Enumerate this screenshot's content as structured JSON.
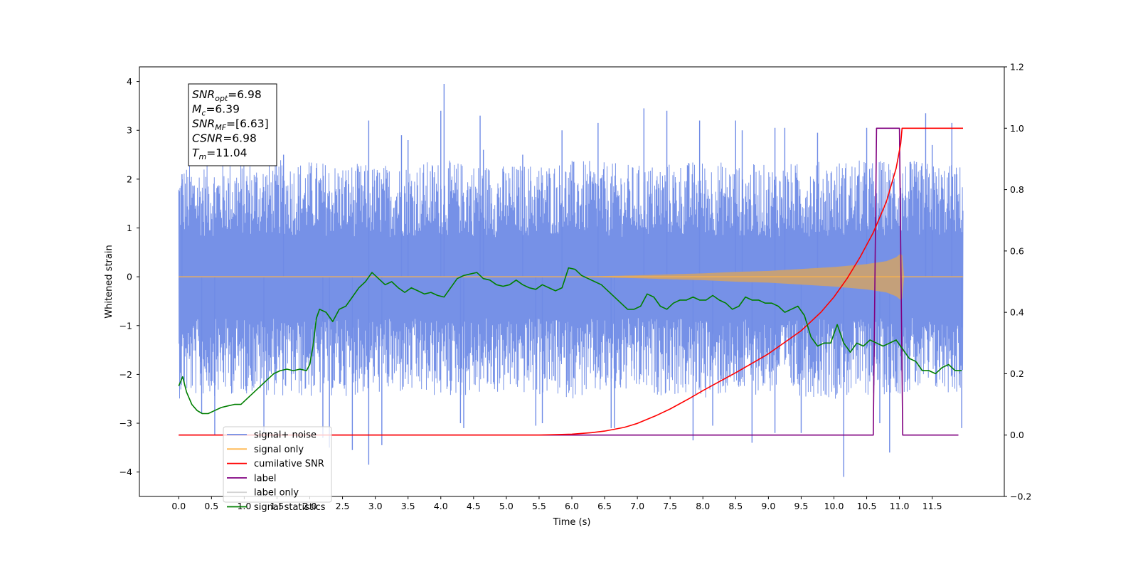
{
  "chart_data": {
    "type": "line",
    "title": "",
    "xlabel": "Time (s)",
    "ylabel": "Whitened strain",
    "xlim": [
      -0.6,
      12.6
    ],
    "ylim": [
      -4.5,
      4.3
    ],
    "y2lim": [
      -0.2,
      1.2
    ],
    "x_ticks": [
      0.0,
      0.5,
      1.0,
      1.5,
      2.0,
      2.5,
      3.0,
      3.5,
      4.0,
      4.5,
      5.0,
      5.5,
      6.0,
      6.5,
      7.0,
      7.5,
      8.0,
      8.5,
      9.0,
      9.5,
      10.0,
      10.5,
      11.0,
      11.5
    ],
    "x_tick_labels": [
      "0.0",
      "0.5",
      "1.0",
      "1.5",
      "2.0",
      "2.5",
      "3.0",
      "3.5",
      "4.0",
      "4.5",
      "5.0",
      "5.5",
      "6.0",
      "6.5",
      "7.0",
      "7.5",
      "8.0",
      "8.5",
      "9.0",
      "9.5",
      "10.0",
      "10.5",
      "11.0",
      "11.5"
    ],
    "y_ticks": [
      4,
      3,
      2,
      1,
      0,
      -1,
      -2,
      -3,
      -4
    ],
    "y_tick_labels": [
      "4",
      "3",
      "2",
      "1",
      "0",
      "−1",
      "−2",
      "−3",
      "−4"
    ],
    "y2_ticks": [
      1.2,
      1.0,
      0.8,
      0.6,
      0.4,
      0.2,
      0.0,
      -0.2
    ],
    "y2_tick_labels": [
      "1.2",
      "1.0",
      "0.8",
      "0.6",
      "0.4",
      "0.2",
      "0.0",
      "−0.2"
    ],
    "legend_position": "lower-left",
    "colors": {
      "signal_plus_noise": "#6f8be6",
      "signal_only": "#ffb347",
      "signal_overlay": "#c4a07a",
      "cumulative_snr": "#ff0000",
      "label": "#800080",
      "label_only": "#d3d3d3",
      "signal_statistics": "#007f00"
    },
    "series": [
      {
        "name": "signal+ noise",
        "axis": "left",
        "style": "noise",
        "x_range": [
          0.0,
          11.97
        ],
        "band_envelope": {
          "x": [
            0.0,
            1.0,
            2.0,
            3.0,
            4.0,
            5.0,
            6.0,
            7.0,
            8.0,
            9.0,
            10.0,
            11.0,
            11.97
          ],
          "upper": [
            2.3,
            2.4,
            2.4,
            2.3,
            2.4,
            2.3,
            2.4,
            2.3,
            2.4,
            2.3,
            2.4,
            2.4,
            2.3
          ],
          "lower": [
            -2.5,
            -2.4,
            -2.5,
            -2.4,
            -2.5,
            -2.4,
            -2.5,
            -2.4,
            -2.5,
            -2.4,
            -2.5,
            -2.4,
            -2.4
          ]
        },
        "spikes": [
          [
            0.05,
            2.1
          ],
          [
            0.35,
            -2.8
          ],
          [
            0.55,
            -3.25
          ],
          [
            1.3,
            -3.2
          ],
          [
            1.6,
            2.5
          ],
          [
            2.2,
            -3.3
          ],
          [
            2.3,
            -3.5
          ],
          [
            2.65,
            -3.55
          ],
          [
            2.9,
            3.2
          ],
          [
            2.9,
            -3.85
          ],
          [
            3.1,
            -3.45
          ],
          [
            3.4,
            2.9
          ],
          [
            3.5,
            2.8
          ],
          [
            4.0,
            3.4
          ],
          [
            4.05,
            3.95
          ],
          [
            4.3,
            -3.0
          ],
          [
            4.35,
            -3.1
          ],
          [
            4.6,
            3.3
          ],
          [
            4.65,
            2.6
          ],
          [
            5.25,
            2.5
          ],
          [
            5.45,
            -3.05
          ],
          [
            5.55,
            -3.0
          ],
          [
            5.85,
            3.0
          ],
          [
            6.4,
            3.15
          ],
          [
            6.6,
            -3.1
          ],
          [
            6.65,
            -3.1
          ],
          [
            7.1,
            3.45
          ],
          [
            7.45,
            3.4
          ],
          [
            7.85,
            -3.35
          ],
          [
            7.95,
            3.2
          ],
          [
            8.15,
            -3.05
          ],
          [
            8.5,
            3.2
          ],
          [
            8.6,
            3.0
          ],
          [
            8.75,
            -3.4
          ],
          [
            9.1,
            3.05
          ],
          [
            9.1,
            -3.2
          ],
          [
            9.25,
            3.05
          ],
          [
            9.5,
            -3.2
          ],
          [
            9.75,
            2.95
          ],
          [
            10.15,
            -4.1
          ],
          [
            10.5,
            3.05
          ],
          [
            10.7,
            -3.0
          ],
          [
            10.85,
            -3.6
          ],
          [
            11.4,
            3.35
          ],
          [
            11.5,
            2.7
          ],
          [
            11.8,
            3.15
          ],
          [
            11.95,
            -3.1
          ]
        ]
      },
      {
        "name": "signal only",
        "axis": "left",
        "style": "chirp",
        "amplitude_envelope": {
          "x": [
            0.0,
            6.0,
            7.0,
            7.5,
            8.0,
            8.5,
            9.0,
            9.5,
            10.0,
            10.5,
            10.8,
            10.95,
            11.04,
            11.06,
            11.97
          ],
          "y": [
            0.0,
            0.0,
            0.03,
            0.05,
            0.07,
            0.1,
            0.12,
            0.16,
            0.2,
            0.26,
            0.32,
            0.4,
            0.5,
            0.0,
            0.0
          ]
        }
      },
      {
        "name": "cumilative SNR",
        "axis": "right",
        "x": [
          0.0,
          1.0,
          2.0,
          3.0,
          4.0,
          5.0,
          5.5,
          6.0,
          6.3,
          6.5,
          6.8,
          7.0,
          7.3,
          7.5,
          7.8,
          8.0,
          8.3,
          8.5,
          8.8,
          9.0,
          9.3,
          9.5,
          9.8,
          10.0,
          10.2,
          10.4,
          10.6,
          10.8,
          10.95,
          11.02,
          11.04,
          11.1,
          11.5,
          11.97
        ],
        "y": [
          0.0,
          0.0,
          0.0,
          0.0,
          0.0,
          0.0,
          0.0,
          0.003,
          0.008,
          0.013,
          0.025,
          0.038,
          0.065,
          0.085,
          0.12,
          0.145,
          0.18,
          0.203,
          0.24,
          0.265,
          0.31,
          0.34,
          0.4,
          0.45,
          0.51,
          0.58,
          0.66,
          0.76,
          0.87,
          0.95,
          1.0,
          1.0,
          1.0,
          1.0
        ]
      },
      {
        "name": "label",
        "axis": "right",
        "x": [
          0.0,
          10.6,
          10.65,
          11.0,
          11.05,
          11.9
        ],
        "y": [
          0.0,
          0.0,
          1.0,
          1.0,
          0.0,
          0.0
        ]
      },
      {
        "name": "label only",
        "axis": "right",
        "x": [],
        "y": []
      },
      {
        "name": "signal statistics",
        "axis": "right",
        "x": [
          0.0,
          0.06,
          0.12,
          0.2,
          0.28,
          0.36,
          0.45,
          0.55,
          0.65,
          0.75,
          0.85,
          0.95,
          1.05,
          1.15,
          1.25,
          1.35,
          1.45,
          1.55,
          1.65,
          1.75,
          1.85,
          1.95,
          2.0,
          2.05,
          2.1,
          2.15,
          2.25,
          2.35,
          2.45,
          2.55,
          2.65,
          2.75,
          2.85,
          2.95,
          3.05,
          3.15,
          3.25,
          3.35,
          3.45,
          3.55,
          3.65,
          3.75,
          3.85,
          3.95,
          4.05,
          4.15,
          4.25,
          4.35,
          4.45,
          4.55,
          4.65,
          4.75,
          4.85,
          4.95,
          5.05,
          5.15,
          5.25,
          5.35,
          5.45,
          5.55,
          5.65,
          5.75,
          5.85,
          5.95,
          6.05,
          6.15,
          6.25,
          6.35,
          6.45,
          6.55,
          6.65,
          6.75,
          6.85,
          6.95,
          7.05,
          7.15,
          7.25,
          7.35,
          7.45,
          7.55,
          7.65,
          7.75,
          7.85,
          7.95,
          8.05,
          8.15,
          8.25,
          8.35,
          8.45,
          8.55,
          8.65,
          8.75,
          8.85,
          8.95,
          9.05,
          9.15,
          9.25,
          9.35,
          9.45,
          9.55,
          9.65,
          9.75,
          9.85,
          9.95,
          10.05,
          10.15,
          10.25,
          10.35,
          10.45,
          10.55,
          10.65,
          10.75,
          10.85,
          10.95,
          11.05,
          11.15,
          11.25,
          11.35,
          11.45,
          11.55,
          11.65,
          11.75,
          11.85,
          11.95
        ],
        "y": [
          0.16,
          0.19,
          0.14,
          0.1,
          0.08,
          0.07,
          0.07,
          0.08,
          0.09,
          0.095,
          0.1,
          0.1,
          0.12,
          0.14,
          0.16,
          0.18,
          0.2,
          0.21,
          0.215,
          0.21,
          0.215,
          0.21,
          0.23,
          0.29,
          0.38,
          0.41,
          0.4,
          0.37,
          0.41,
          0.42,
          0.45,
          0.48,
          0.5,
          0.53,
          0.51,
          0.49,
          0.5,
          0.48,
          0.465,
          0.48,
          0.47,
          0.46,
          0.465,
          0.455,
          0.45,
          0.48,
          0.51,
          0.52,
          0.525,
          0.53,
          0.51,
          0.505,
          0.49,
          0.485,
          0.49,
          0.505,
          0.49,
          0.48,
          0.475,
          0.49,
          0.48,
          0.47,
          0.48,
          0.545,
          0.54,
          0.52,
          0.51,
          0.5,
          0.49,
          0.47,
          0.45,
          0.43,
          0.41,
          0.41,
          0.42,
          0.46,
          0.45,
          0.42,
          0.41,
          0.43,
          0.44,
          0.44,
          0.45,
          0.44,
          0.44,
          0.455,
          0.44,
          0.43,
          0.41,
          0.42,
          0.45,
          0.44,
          0.44,
          0.43,
          0.43,
          0.42,
          0.4,
          0.41,
          0.42,
          0.39,
          0.32,
          0.29,
          0.3,
          0.3,
          0.36,
          0.3,
          0.27,
          0.3,
          0.29,
          0.31,
          0.3,
          0.29,
          0.3,
          0.31,
          0.28,
          0.25,
          0.24,
          0.21,
          0.21,
          0.2,
          0.22,
          0.23,
          0.21,
          0.21
        ]
      }
    ],
    "legend": [
      {
        "label": "signal+ noise",
        "color": "#6f8be6"
      },
      {
        "label": "signal only",
        "color": "#ffb347"
      },
      {
        "label": "cumilative SNR",
        "color": "#ff0000"
      },
      {
        "label": "label",
        "color": "#800080"
      },
      {
        "label": "label only",
        "color": "#d3d3d3"
      },
      {
        "label": "signal statistics",
        "color": "#007f00"
      }
    ],
    "stats_box": [
      {
        "base": "SNR",
        "sub": "opt",
        "value": "=6.98"
      },
      {
        "base": "M",
        "sub": "c",
        "value": "=6.39"
      },
      {
        "base": "SNR",
        "sub": "MF",
        "value": "=[6.63]"
      },
      {
        "base": "CSNR",
        "sub": "",
        "value": "=6.98"
      },
      {
        "base": "T",
        "sub": "m",
        "value": "=11.04"
      }
    ]
  }
}
